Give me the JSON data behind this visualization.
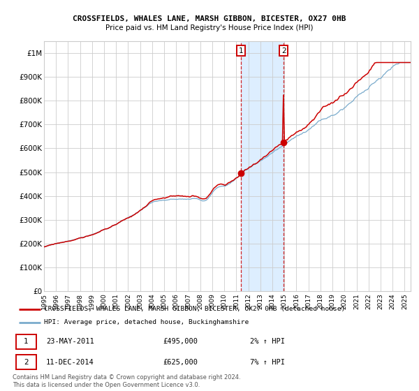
{
  "title1": "CROSSFIELDS, WHALES LANE, MARSH GIBBON, BICESTER, OX27 0HB",
  "title2": "Price paid vs. HM Land Registry's House Price Index (HPI)",
  "legend_red": "CROSSFIELDS, WHALES LANE, MARSH GIBBON, BICESTER, OX27 0HB (detached house)",
  "legend_blue": "HPI: Average price, detached house, Buckinghamshire",
  "annotation1_date": "23-MAY-2011",
  "annotation1_price": "£495,000",
  "annotation1_hpi": "2% ↑ HPI",
  "annotation2_date": "11-DEC-2014",
  "annotation2_price": "£625,000",
  "annotation2_hpi": "7% ↑ HPI",
  "footer": "Contains HM Land Registry data © Crown copyright and database right 2024.\nThis data is licensed under the Open Government Licence v3.0.",
  "red_color": "#cc0000",
  "blue_color": "#7aabcc",
  "shade_color": "#ddeeff",
  "grid_color": "#cccccc",
  "ylim": [
    0,
    1050000
  ],
  "yticks": [
    0,
    100000,
    200000,
    300000,
    400000,
    500000,
    600000,
    700000,
    800000,
    900000,
    1000000
  ],
  "ytick_labels": [
    "£0",
    "£100K",
    "£200K",
    "£300K",
    "£400K",
    "£500K",
    "£600K",
    "£700K",
    "£800K",
    "£900K",
    "£1M"
  ],
  "sale1_x": 2011.38,
  "sale1_y": 495000,
  "sale2_x": 2014.95,
  "sale2_y": 625000,
  "xmin": 1995.0,
  "xmax": 2025.5
}
